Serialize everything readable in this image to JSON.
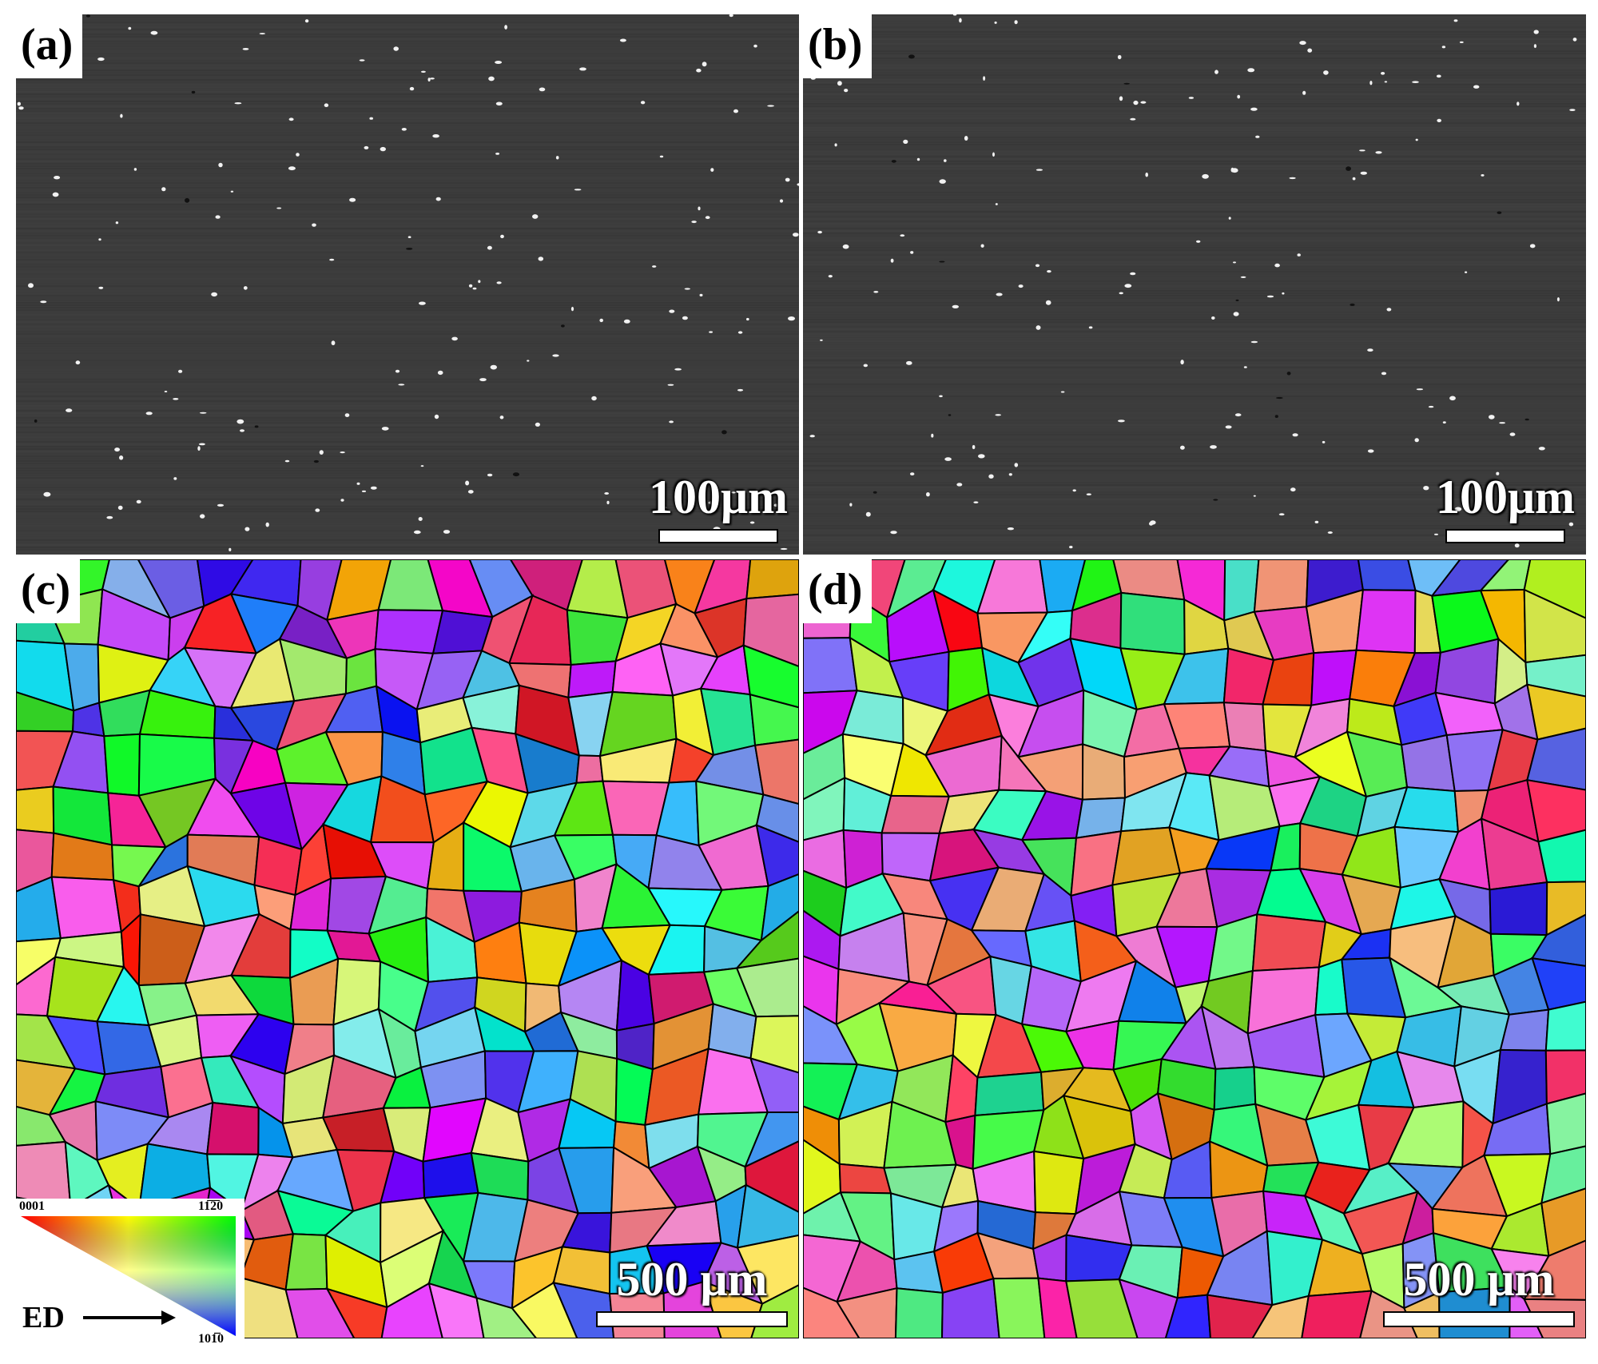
{
  "panels": [
    {
      "id": "a",
      "label": "(a)",
      "type": "sem",
      "scale_bar": "100μm"
    },
    {
      "id": "b",
      "label": "(b)",
      "type": "sem",
      "scale_bar": "100μm"
    },
    {
      "id": "c",
      "label": "(c)",
      "type": "ebsd",
      "scale_bar": "500 μm"
    },
    {
      "id": "d",
      "label": "(d)",
      "type": "ebsd",
      "scale_bar": "500 μm"
    }
  ],
  "legend": {
    "corner_0001": "0001",
    "corner_11-20": "11̅2̅0",
    "corner_10-10": "101̅0",
    "direction_label": "ED"
  },
  "colors": {
    "sem_background": "#3c3c3c",
    "grain_boundary": "#000000",
    "legend_red": "#ff0000",
    "legend_green": "#00ff00",
    "legend_blue": "#0000ff"
  }
}
